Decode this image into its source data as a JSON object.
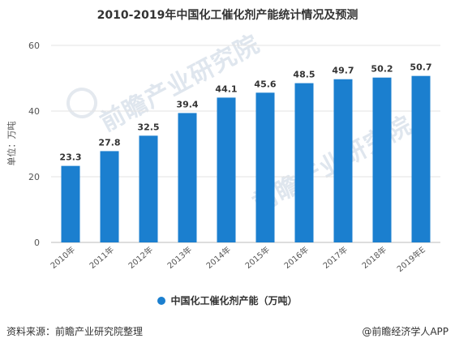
{
  "watermark": "前瞻产业研究院",
  "legend": {
    "label": "中国化工催化剂产能（万吨）"
  },
  "footer": {
    "source": "资料来源：前瞻产业研究院整理",
    "brand": "@前瞻经济学人APP"
  },
  "chart_data": {
    "type": "bar",
    "title": "2010-2019年中国化工催化剂产能统计情况及预测",
    "ylabel": "单位：万吨",
    "categories": [
      "2010年",
      "2011年",
      "2012年",
      "2013年",
      "2014年",
      "2015年",
      "2016年",
      "2017年",
      "2018年",
      "2019年E"
    ],
    "series": [
      {
        "name": "中国化工催化剂产能（万吨）",
        "values": [
          23.3,
          27.8,
          32.5,
          39.4,
          44.1,
          45.6,
          48.5,
          49.7,
          50.2,
          50.7
        ]
      }
    ],
    "ylim": [
      0,
      60
    ],
    "yticks": [
      0,
      20,
      40,
      60
    ],
    "color": "#1b7fcf",
    "grid": true,
    "legend_position": "bottom"
  }
}
